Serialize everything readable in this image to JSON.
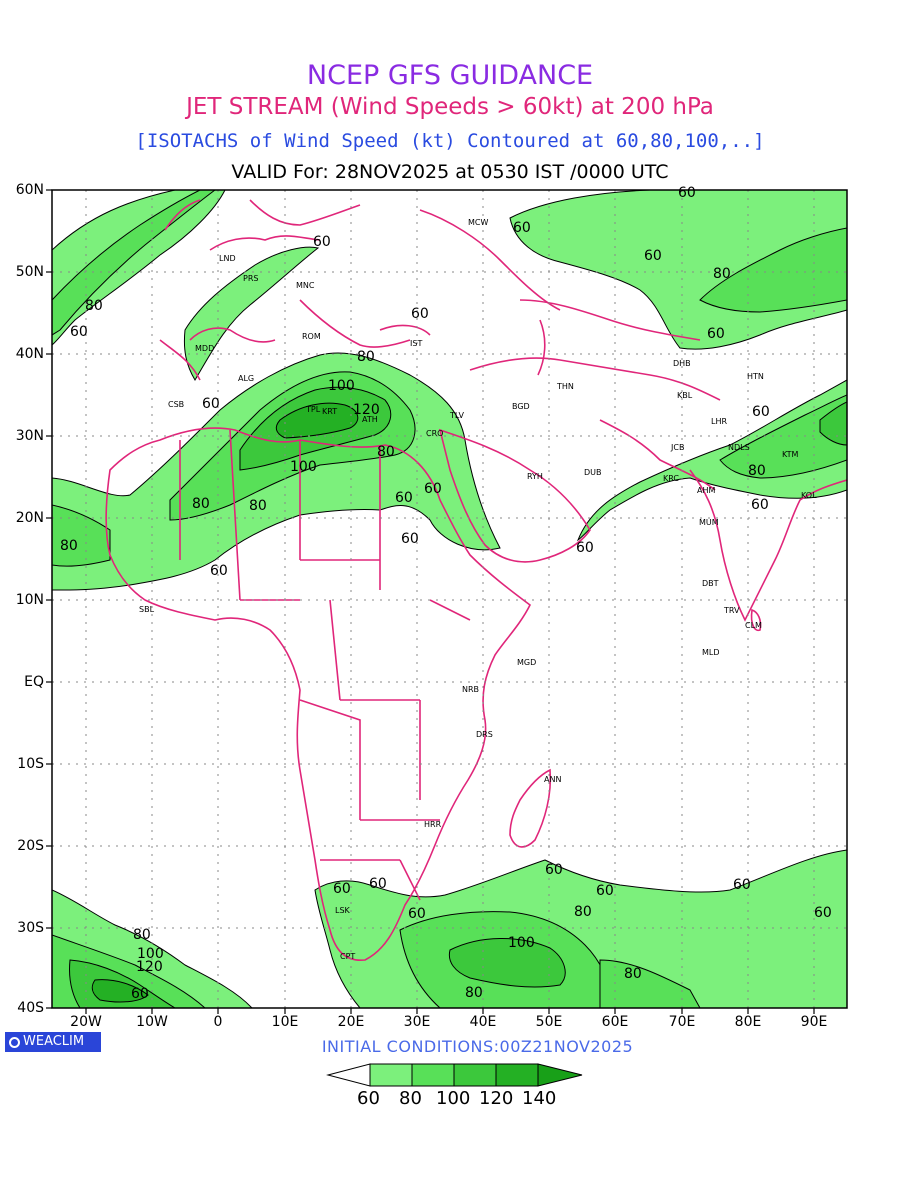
{
  "titles": {
    "line1": "NCEP GFS GUIDANCE",
    "line2": "JET STREAM (Wind Speeds > 60kt) at 200 hPa",
    "line3": "[ISOTACHS of Wind Speed (kt) Contoured at 60,80,100,..]",
    "line4": "VALID For: 28NOV2025 at 0530 IST /0000 UTC"
  },
  "axes": {
    "lat_labels": [
      "60N",
      "50N",
      "40N",
      "30N",
      "20N",
      "10N",
      "EQ",
      "10S",
      "20S",
      "30S",
      "40S"
    ],
    "lon_labels": [
      "20W",
      "10W",
      "0",
      "10E",
      "20E",
      "30E",
      "40E",
      "50E",
      "60E",
      "70E",
      "80E",
      "90E"
    ]
  },
  "stations": [
    {
      "code": "MCW"
    },
    {
      "code": "LND"
    },
    {
      "code": "PRS"
    },
    {
      "code": "MNC"
    },
    {
      "code": "ROM"
    },
    {
      "code": "MDD"
    },
    {
      "code": "IST"
    },
    {
      "code": "ALG"
    },
    {
      "code": "CSB"
    },
    {
      "code": "TPL"
    },
    {
      "code": "KRT"
    },
    {
      "code": "ATH"
    },
    {
      "code": "CRO"
    },
    {
      "code": "TLV"
    },
    {
      "code": "BGD"
    },
    {
      "code": "THN"
    },
    {
      "code": "RYH"
    },
    {
      "code": "DUB"
    },
    {
      "code": "KRC"
    },
    {
      "code": "DHB"
    },
    {
      "code": "KBL"
    },
    {
      "code": "LHR"
    },
    {
      "code": "JCB"
    },
    {
      "code": "NDLS"
    },
    {
      "code": "HTN"
    },
    {
      "code": "KTM"
    },
    {
      "code": "AHM"
    },
    {
      "code": "KOL"
    },
    {
      "code": "MUM"
    },
    {
      "code": "DBT"
    },
    {
      "code": "TRV"
    },
    {
      "code": "CLM"
    },
    {
      "code": "MLD"
    },
    {
      "code": "SBL"
    },
    {
      "code": "MGD"
    },
    {
      "code": "NRB"
    },
    {
      "code": "DRS"
    },
    {
      "code": "ANN"
    },
    {
      "code": "HRR"
    },
    {
      "code": "LSK"
    },
    {
      "code": "CPT"
    }
  ],
  "contour_labels": [
    {
      "value": "60"
    },
    {
      "value": "60"
    },
    {
      "value": "60"
    },
    {
      "value": "80"
    },
    {
      "value": "60"
    },
    {
      "value": "80"
    },
    {
      "value": "60"
    },
    {
      "value": "60"
    },
    {
      "value": "80"
    },
    {
      "value": "100"
    },
    {
      "value": "120"
    },
    {
      "value": "80"
    },
    {
      "value": "60"
    },
    {
      "value": "100"
    },
    {
      "value": "60"
    },
    {
      "value": "60"
    },
    {
      "value": "80"
    },
    {
      "value": "80"
    },
    {
      "value": "80"
    },
    {
      "value": "60"
    },
    {
      "value": "60"
    },
    {
      "value": "60"
    },
    {
      "value": "60"
    },
    {
      "value": "80"
    },
    {
      "value": "60"
    },
    {
      "value": "60"
    },
    {
      "value": "60"
    },
    {
      "value": "60"
    },
    {
      "value": "60"
    },
    {
      "value": "60"
    },
    {
      "value": "80"
    },
    {
      "value": "100"
    },
    {
      "value": "80"
    },
    {
      "value": "80"
    },
    {
      "value": "60"
    },
    {
      "value": "60"
    },
    {
      "value": "60"
    },
    {
      "value": "80"
    },
    {
      "value": "100"
    },
    {
      "value": "120"
    },
    {
      "value": "60"
    }
  ],
  "footer": {
    "badge": "WEACLIM",
    "initial_conditions": "INITIAL CONDITIONS:00Z21NOV2025"
  },
  "legend": {
    "labels": [
      "60",
      "80",
      "100",
      "120",
      "140"
    ],
    "colors": [
      "#ffffff",
      "#7cf07c",
      "#58e058",
      "#3cc83c",
      "#24b024",
      "#18a018"
    ]
  },
  "colors": {
    "boundary": "#e0267a",
    "shade_60": "#7cf07c",
    "shade_80": "#58e058",
    "shade_100": "#3cc83c",
    "shade_120": "#24b024",
    "title1": "#8a2be2",
    "title2": "#e0267a",
    "title3": "#2a4be0"
  }
}
